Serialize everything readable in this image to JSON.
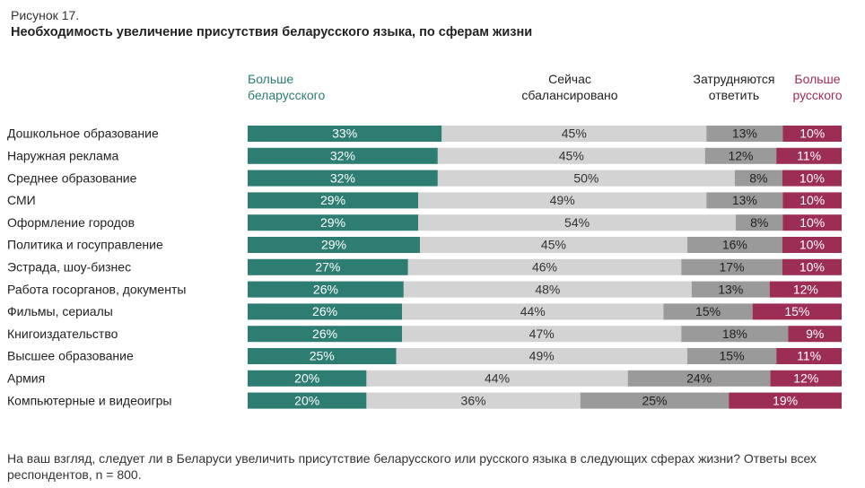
{
  "chart_data": {
    "type": "stacked-bar-horizontal",
    "figure_label": "Рисунок 17.",
    "title": "Необходимость увеличение присутствия беларусского языка, по сферам жизни",
    "categories": [
      "Дошкольное образование",
      "Наружная реклама",
      "Среднее образование",
      "СМИ",
      "Оформление городов",
      "Политика и госуправление",
      "Эстрада, шоу-бизнес",
      "Работа госорганов, документы",
      "Фильмы, сериалы",
      "Книгоиздательство",
      "Высшее образование",
      "Армия",
      "Компьютерные и видеоигры"
    ],
    "series": [
      {
        "name": "Больше беларусского",
        "color": "#2e7d72",
        "values": [
          33,
          32,
          32,
          29,
          29,
          29,
          27,
          26,
          26,
          26,
          25,
          20,
          20
        ],
        "value_labels": [
          "33%",
          "32%",
          "32%",
          "29%",
          "29%",
          "29%",
          "27%",
          "26%",
          "26%",
          "26%",
          "25%",
          "20%",
          "20%"
        ]
      },
      {
        "name": "Сейчас сбалансировано",
        "color": "#d3d3d3",
        "values": [
          45,
          45,
          50,
          49,
          54,
          45,
          46,
          48,
          44,
          47,
          49,
          44,
          36
        ],
        "value_labels": [
          "45%",
          "45%",
          "50%",
          "49%",
          "54%",
          "45%",
          "46%",
          "48%",
          "44%",
          "47%",
          "49%",
          "44%",
          "36%"
        ]
      },
      {
        "name": "Затрудняются ответить",
        "color": "#9a9a9a",
        "values": [
          13,
          12,
          8,
          13,
          8,
          16,
          17,
          13,
          15,
          18,
          15,
          24,
          25
        ],
        "value_labels": [
          "13%",
          "12%",
          "8%",
          "13%",
          "8%",
          "16%",
          "17%",
          "13%",
          "15%",
          "18%",
          "15%",
          "24%",
          "25%"
        ]
      },
      {
        "name": "Больше русского",
        "color": "#9c2d55",
        "values": [
          10,
          11,
          10,
          10,
          10,
          10,
          10,
          12,
          15,
          9,
          11,
          12,
          19
        ],
        "value_labels": [
          "10%",
          "11%",
          "10%",
          "10%",
          "10%",
          "10%",
          "10%",
          "12%",
          "15%",
          "9%",
          "11%",
          "12%",
          "19%"
        ]
      }
    ],
    "note": "На ваш взгляд, следует ли в Беларуси увеличить присутствие беларусского или русского языка в следующих сферах жизни? Ответы всех респондентов, n = 800."
  }
}
